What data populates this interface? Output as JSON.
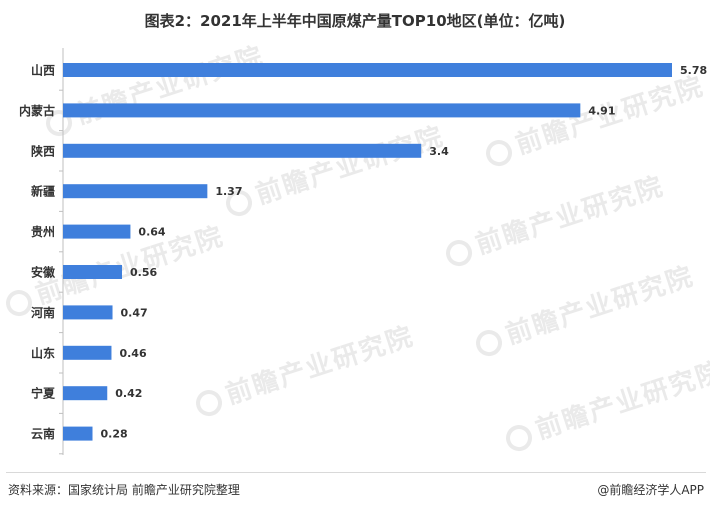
{
  "chart_data": {
    "type": "bar",
    "orientation": "horizontal",
    "title": "图表2：2021年上半年中国原煤产量TOP10地区(单位：亿吨)",
    "categories": [
      "山西",
      "内蒙古",
      "陕西",
      "新疆",
      "贵州",
      "安徽",
      "河南",
      "山东",
      "宁夏",
      "云南"
    ],
    "values": [
      5.78,
      4.91,
      3.4,
      1.37,
      0.64,
      0.56,
      0.47,
      0.46,
      0.42,
      0.28
    ],
    "value_labels": [
      "5.78",
      "4.91",
      "3.4",
      "1.37",
      "0.64",
      "0.56",
      "0.47",
      "0.46",
      "0.42",
      "0.28"
    ],
    "xlim": [
      0,
      5.78
    ],
    "grid": false,
    "bar_color": "#3f7fdc"
  },
  "footer": {
    "source": "资料来源：国家统计局 前瞻产业研究院整理",
    "brand": "@前瞻经济学人APP"
  },
  "watermark": {
    "text": "前瞻产业研究院"
  }
}
